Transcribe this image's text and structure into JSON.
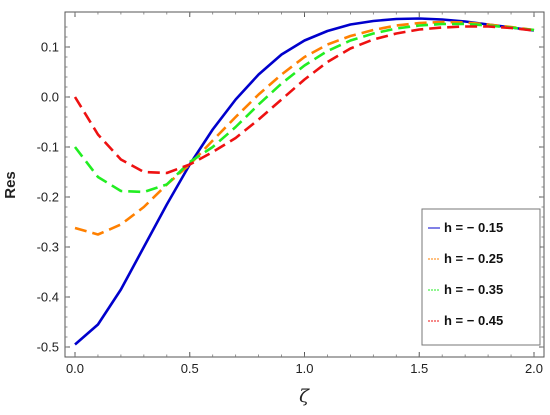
{
  "chart_data": {
    "type": "line",
    "title": "",
    "xlabel": "ζ",
    "ylabel": "Res",
    "xlim": [
      0.0,
      2.0
    ],
    "ylim": [
      -0.52,
      0.17
    ],
    "xticks": [
      "0.0",
      "0.5",
      "1.0",
      "1.5",
      "2.0"
    ],
    "yticks": [
      "-0.5",
      "-0.4",
      "-0.3",
      "-0.2",
      "-0.1",
      "0.0",
      "0.1"
    ],
    "x": [
      0.0,
      0.1,
      0.2,
      0.3,
      0.4,
      0.5,
      0.6,
      0.7,
      0.8,
      0.9,
      1.0,
      1.1,
      1.2,
      1.3,
      1.4,
      1.5,
      1.6,
      1.7,
      1.8,
      1.9,
      2.0
    ],
    "legend_position": "bottom-right",
    "grid": false,
    "series": [
      {
        "name": "h = − 0.15",
        "color": "#0000cc",
        "dash": "solid",
        "values": [
          -0.495,
          -0.455,
          -0.385,
          -0.3,
          -0.215,
          -0.135,
          -0.065,
          -0.005,
          0.045,
          0.085,
          0.113,
          0.132,
          0.145,
          0.152,
          0.156,
          0.157,
          0.155,
          0.151,
          0.145,
          0.139,
          0.133
        ]
      },
      {
        "name": "h = − 0.25",
        "color": "#ff8000",
        "dash": "dashed",
        "values": [
          -0.262,
          -0.275,
          -0.255,
          -0.22,
          -0.175,
          -0.135,
          -0.087,
          -0.04,
          0.005,
          0.045,
          0.08,
          0.105,
          0.122,
          0.134,
          0.143,
          0.148,
          0.15,
          0.149,
          0.145,
          0.14,
          0.134
        ]
      },
      {
        "name": "h = − 0.35",
        "color": "#22ee22",
        "dash": "dashed",
        "values": [
          -0.1,
          -0.16,
          -0.188,
          -0.19,
          -0.175,
          -0.13,
          -0.1,
          -0.06,
          -0.015,
          0.027,
          0.063,
          0.092,
          0.113,
          0.127,
          0.137,
          0.143,
          0.146,
          0.146,
          0.143,
          0.139,
          0.134
        ]
      },
      {
        "name": "h = − 0.45",
        "color": "#ee1111",
        "dash": "dashed",
        "values": [
          0.0,
          -0.075,
          -0.125,
          -0.15,
          -0.152,
          -0.135,
          -0.11,
          -0.082,
          -0.045,
          -0.005,
          0.035,
          0.07,
          0.097,
          0.115,
          0.127,
          0.135,
          0.139,
          0.141,
          0.141,
          0.138,
          0.133
        ]
      }
    ]
  }
}
